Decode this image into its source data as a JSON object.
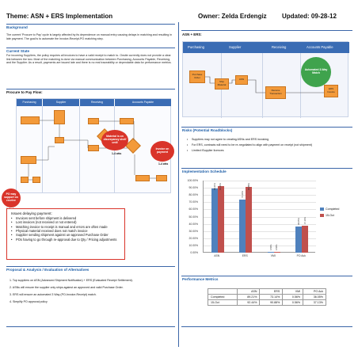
{
  "header": {
    "theme": "Theme: ASN + ERS Implementation",
    "owner": "Owner: Zelda Erdengiz",
    "updated": "Updated: 09-28-12"
  },
  "left": {
    "background_title": "Background",
    "background_text": "The current 'Procure to Pay' cycle is largely affected by its dependence on manual entry causing delays in matching and resulting in late payment. The goal is to automate the Invoice-Receipt-PO matching step.",
    "current_state_title": "Current State",
    "current_state_text": "For incoming Suppliers, the policy requires all invoices to have a valid receipt to match to. Onsite currently does not provide a clear link between the two. Most of the matching is done via manual communication between Purchasing, Accounts Payable, Receiving, and the Supplier. As a result, payments are issued late and there is no real traceability or dependable data for performance metrics.",
    "flow_title": "Procure to Pay Flow:",
    "flow_lanes": [
      "Purchasing",
      "Supplier",
      "Receiving",
      "Accounts Payable"
    ],
    "bubbles": {
      "b1": "Material is on discrepancy shelf until",
      "b2": "Invoice on payment",
      "b3": "PO may support on receive"
    },
    "bubble_sub": {
      "b1": "1-4 wks",
      "b2": "1-4 wks",
      "b3": "1-4 wks"
    },
    "issues": {
      "title": "Issues delaying payment:",
      "items": [
        "Invoices sent before shipment is delivered",
        "Lost invoices (not received or not entered)",
        "Matching invoice to receipt is manual and errors are often made",
        "Physical material received does not match invoice",
        "Supplier sending shipment against un-approved Purchase Order",
        "POs having to go through re-approval due to Qty / Pricing adjustments"
      ]
    },
    "proposal_title": "Proposal & Analysis / Evaluation of Alternatives",
    "proposals": [
      "1.   Top suppliers on ASN (Advanced Shipment Notification) + ERS (Evaluated Receipt Settlement).",
      "2.   ASNs will ensure the supplier only ships against an approved and valid Purchase Order.",
      "3.   ERS will ensure an automated 3 Way (PO-Invoice-Receipt) match.",
      "4.   Simplify PO approval policy"
    ]
  },
  "right": {
    "asn_title": "ASN + ERS:",
    "asn_lanes": [
      "Purchasing",
      "Supplier",
      "Receiving",
      "Accounts Payable"
    ],
    "asn_boxes": [
      "Purchase Order",
      "Ship Material",
      "ASN",
      "Receive Transaction",
      "ERS Invoice"
    ],
    "asn_bubble": "Automated 3-Way Match",
    "risks_title": "Risks (Potential Roadblocks)",
    "risks": [
      "Suppliers may not agree to creating ASNs and ERS invoicing",
      "For ERS,  contracts will need to be re-negotiated to align with payment on receipt (not shipment)",
      "Limited iSupplier licences"
    ],
    "schedule_title": "Implementation Schedule",
    "metrics_title": "Performance Metrics",
    "metrics_table": {
      "columns": [
        "",
        "ASN",
        "ERS",
        "VMI",
        "PO Ack"
      ],
      "rows": [
        [
          "Completed",
          "89.21%",
          "73.14%",
          "0.56%",
          "36.05%"
        ],
        [
          "15-Oct",
          "92.44%",
          "90.88%",
          "0.56%",
          "37.13%"
        ]
      ]
    }
  },
  "chart_data": {
    "type": "bar",
    "categories": [
      "ASN",
      "ERS",
      "VMI",
      "PO Ack"
    ],
    "series": [
      {
        "name": "Completed",
        "values": [
          89.21,
          73.14,
          0.56,
          36.05
        ],
        "labels": [
          "89.21%",
          "73.14%",
          "0.56%",
          "36.05%"
        ],
        "color": "#4f81bd"
      },
      {
        "name": "15-Oct",
        "values": [
          92.44,
          90.88,
          0.56,
          37.13
        ],
        "labels": [
          "92.44%",
          "90.88%",
          "0.56%",
          "37.13%"
        ],
        "color": "#c0504d"
      }
    ],
    "yticks": [
      "0.00%",
      "10.00%",
      "20.00%",
      "30.00%",
      "40.00%",
      "50.00%",
      "60.00%",
      "70.00%",
      "80.00%",
      "90.00%",
      "100.00%"
    ],
    "ylim": [
      0,
      100
    ],
    "legend": "right",
    "grid": true
  },
  "colors": {
    "accent": "#1f5fa8",
    "lane_header": "#3a6cb4",
    "process_box": "#f39a3a",
    "alert": "#d9342a",
    "bubble_green": "#3fa34d"
  }
}
